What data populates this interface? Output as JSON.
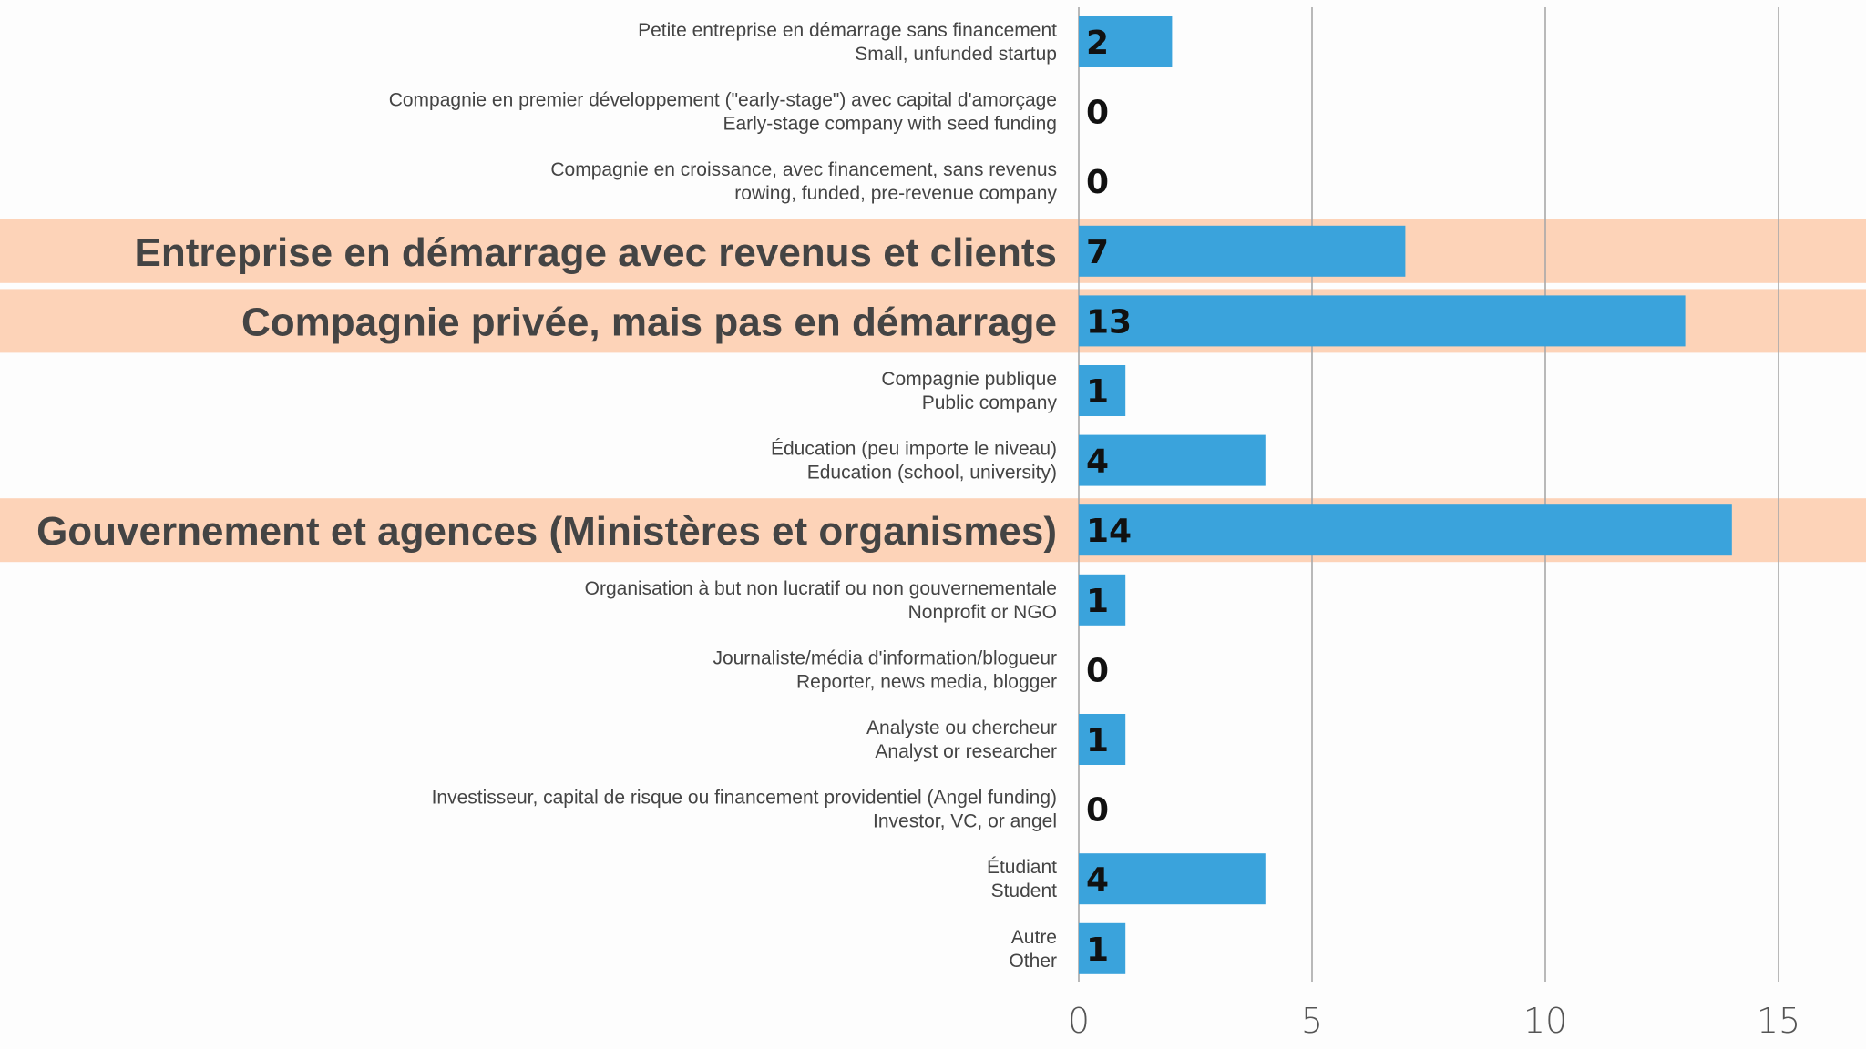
{
  "chart_data": {
    "type": "bar",
    "orientation": "horizontal",
    "title": "",
    "xlabel": "",
    "ylabel": "",
    "xlim": [
      0,
      15.5
    ],
    "xticks": [
      0,
      5,
      10,
      15
    ],
    "grid": true,
    "legend": "none",
    "bar_color": "#3aa3dc",
    "highlight_color": "#fdd3b8",
    "categories": [
      {
        "lines": [
          "Petite entreprise en démarrage sans financement",
          "Small, unfunded startup"
        ],
        "value": 2,
        "highlight": false
      },
      {
        "lines": [
          "Compagnie en premier développement (\"early-stage\") avec capital d'amorçage",
          "Early-stage company with seed funding"
        ],
        "value": 0,
        "highlight": false
      },
      {
        "lines": [
          "Compagnie en croissance, avec financement, sans revenus",
          "rowing, funded, pre-revenue company"
        ],
        "value": 0,
        "highlight": false
      },
      {
        "lines": [
          "Entreprise en démarrage avec revenus et clients"
        ],
        "value": 7,
        "highlight": true
      },
      {
        "lines": [
          "Compagnie privée, mais pas en démarrage"
        ],
        "value": 13,
        "highlight": true
      },
      {
        "lines": [
          "Compagnie publique",
          "Public company"
        ],
        "value": 1,
        "highlight": false
      },
      {
        "lines": [
          "Éducation (peu importe le niveau)",
          "Education (school, university)"
        ],
        "value": 4,
        "highlight": false
      },
      {
        "lines": [
          "Gouvernement et agences (Ministères et organismes)"
        ],
        "value": 14,
        "highlight": true
      },
      {
        "lines": [
          "Organisation à but non lucratif ou non gouvernementale",
          "Nonprofit or NGO"
        ],
        "value": 1,
        "highlight": false
      },
      {
        "lines": [
          "Journaliste/média d'information/blogueur",
          "Reporter, news media, blogger"
        ],
        "value": 0,
        "highlight": false
      },
      {
        "lines": [
          "Analyste ou chercheur",
          "Analyst or researcher"
        ],
        "value": 1,
        "highlight": false
      },
      {
        "lines": [
          "Investisseur, capital de risque ou financement providentiel (Angel funding)",
          "Investor, VC, or angel"
        ],
        "value": 0,
        "highlight": false
      },
      {
        "lines": [
          "Étudiant",
          "Student"
        ],
        "value": 4,
        "highlight": false
      },
      {
        "lines": [
          "Autre",
          "Other"
        ],
        "value": 1,
        "highlight": false
      }
    ]
  }
}
